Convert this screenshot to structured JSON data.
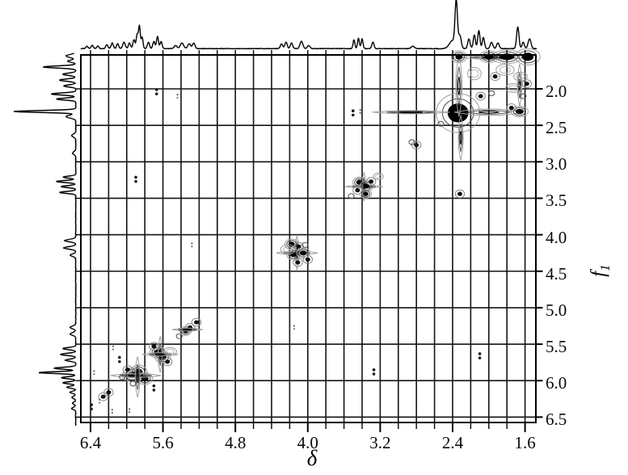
{
  "figure": {
    "background": "#ffffff",
    "ink": "#000000",
    "grid_color": "#141414",
    "contour_grays": [
      "#000000",
      "#4a4a4a",
      "#8a8a8a",
      "#9f9f9f"
    ]
  },
  "chart_data": {
    "type": "heatmap",
    "subtype": "2D NMR COSY contour spectrum with 1D projections",
    "title": "",
    "xlabel": "δ",
    "ylabel": "f",
    "ylabel_sub": "1",
    "x_axis": {
      "unit": "ppm",
      "reversed": true,
      "range": [
        6.51,
        1.48
      ],
      "tick_labels": [
        "6.4",
        "5.6",
        "4.8",
        "4.0",
        "3.2",
        "2.4",
        "1.6"
      ],
      "minor_tick_step": 0.2,
      "grid_step": 0.2
    },
    "y_axis": {
      "unit": "ppm",
      "side": "right",
      "range": [
        1.54,
        6.59
      ],
      "tick_labels": [
        "2.0",
        "2.5",
        "3.0",
        "3.5",
        "4.0",
        "4.5",
        "5.0",
        "5.5",
        "6.0",
        "6.5"
      ],
      "grid_step": 0.5
    },
    "grid": {
      "vertical_from": 6.4,
      "vertical_count": 25,
      "horizontal_from": 2.0,
      "horizontal_count": 10
    },
    "peaks_2d": [
      {
        "d": 2.34,
        "f": 2.33,
        "kind": "strong",
        "w": 0.23,
        "h": 0.26
      },
      {
        "d": 2.86,
        "f": 2.32,
        "kind": "hstreak",
        "w": 0.86,
        "h": 0.045
      },
      {
        "d": 2.0,
        "f": 2.32,
        "kind": "hstreak",
        "w": 0.76,
        "h": 0.09
      },
      {
        "d": 2.33,
        "f": 1.96,
        "kind": "vstreak",
        "w": 0.07,
        "h": 0.84
      },
      {
        "d": 2.31,
        "f": 2.67,
        "kind": "vstreak",
        "w": 0.055,
        "h": 0.62
      },
      {
        "d": 1.66,
        "f": 2.31,
        "kind": "strong",
        "w": 0.09,
        "h": 0.07
      },
      {
        "d": 1.75,
        "f": 2.26,
        "kind": "medium"
      },
      {
        "d": 2.53,
        "f": 2.48,
        "kind": "ring"
      },
      {
        "d": 2.8,
        "f": 2.77,
        "kind": "medium"
      },
      {
        "d": 2.85,
        "f": 2.73,
        "kind": "ring"
      },
      {
        "d": 3.5,
        "f": 2.33,
        "kind": "dots"
      },
      {
        "d": 3.42,
        "f": 2.31,
        "kind": "speck"
      },
      {
        "d": 2.32,
        "f": 3.44,
        "kind": "medium"
      },
      {
        "d": 1.95,
        "f": 1.57,
        "kind": "hstreak",
        "w": 0.8,
        "h": 0.05
      },
      {
        "d": 1.8,
        "f": 1.56,
        "kind": "strong",
        "w": 0.16,
        "h": 0.09
      },
      {
        "d": 1.57,
        "f": 1.56,
        "kind": "strong",
        "w": 0.13,
        "h": 0.11
      },
      {
        "d": 2.0,
        "f": 1.56,
        "kind": "strong",
        "w": 0.1,
        "h": 0.08
      },
      {
        "d": 2.33,
        "f": 1.56,
        "kind": "strong",
        "w": 0.08,
        "h": 0.08
      },
      {
        "d": 1.66,
        "f": 1.95,
        "kind": "vstreak",
        "w": 0.05,
        "h": 0.58
      },
      {
        "d": 1.93,
        "f": 1.83,
        "kind": "medium"
      },
      {
        "d": 2.09,
        "f": 2.1,
        "kind": "medium"
      },
      {
        "d": 1.97,
        "f": 2.06,
        "kind": "ring"
      },
      {
        "d": 1.82,
        "f": 1.74,
        "kind": "bigring",
        "w": 0.2,
        "h": 0.15
      },
      {
        "d": 1.65,
        "f": 1.83,
        "kind": "bigring",
        "w": 0.15,
        "h": 0.12
      },
      {
        "d": 1.73,
        "f": 1.99,
        "kind": "bigring",
        "w": 0.17,
        "h": 0.12
      },
      {
        "d": 2.16,
        "f": 1.79,
        "kind": "bigring",
        "w": 0.15,
        "h": 0.17
      },
      {
        "d": 1.58,
        "f": 1.93,
        "kind": "medium"
      },
      {
        "d": 1.62,
        "f": 2.1,
        "kind": "ring"
      },
      {
        "d": 5.67,
        "f": 2.04,
        "kind": "dots"
      },
      {
        "d": 5.44,
        "f": 2.1,
        "kind": "speck"
      },
      {
        "d": 2.1,
        "f": 5.66,
        "kind": "dots"
      },
      {
        "d": 5.9,
        "f": 3.24,
        "kind": "dots"
      },
      {
        "d": 3.27,
        "f": 5.88,
        "kind": "dots"
      },
      {
        "d": 5.28,
        "f": 4.14,
        "kind": "speck"
      },
      {
        "d": 4.15,
        "f": 5.27,
        "kind": "speck"
      },
      {
        "d": 3.38,
        "f": 3.34,
        "kind": "hstreak",
        "w": 0.42,
        "h": 0.04
      },
      {
        "d": 3.38,
        "f": 3.34,
        "kind": "vstreak",
        "w": 0.04,
        "h": 0.4
      },
      {
        "d": 3.43,
        "f": 3.28,
        "kind": "strong",
        "w": 0.07,
        "h": 0.07
      },
      {
        "d": 3.35,
        "f": 3.33,
        "kind": "strong",
        "w": 0.07,
        "h": 0.07
      },
      {
        "d": 3.45,
        "f": 3.39,
        "kind": "medium"
      },
      {
        "d": 3.36,
        "f": 3.44,
        "kind": "strong",
        "w": 0.06,
        "h": 0.06
      },
      {
        "d": 3.3,
        "f": 3.27,
        "kind": "medium"
      },
      {
        "d": 3.52,
        "f": 3.47,
        "kind": "ring"
      },
      {
        "d": 3.22,
        "f": 3.2,
        "kind": "bigring",
        "w": 0.11,
        "h": 0.09
      },
      {
        "d": 4.12,
        "f": 4.25,
        "kind": "hstreak",
        "w": 0.46,
        "h": 0.05
      },
      {
        "d": 4.12,
        "f": 4.25,
        "kind": "vstreak",
        "w": 0.05,
        "h": 0.46
      },
      {
        "d": 4.18,
        "f": 4.13,
        "kind": "strong",
        "w": 0.07,
        "h": 0.07
      },
      {
        "d": 4.1,
        "f": 4.16,
        "kind": "medium"
      },
      {
        "d": 4.16,
        "f": 4.27,
        "kind": "strong",
        "w": 0.07,
        "h": 0.07
      },
      {
        "d": 4.05,
        "f": 4.25,
        "kind": "strong",
        "w": 0.07,
        "h": 0.07
      },
      {
        "d": 4.11,
        "f": 4.38,
        "kind": "medium"
      },
      {
        "d": 4.0,
        "f": 4.34,
        "kind": "medium"
      },
      {
        "d": 4.22,
        "f": 4.2,
        "kind": "bigring",
        "w": 0.16,
        "h": 0.13
      },
      {
        "d": 4.03,
        "f": 4.14,
        "kind": "ring"
      },
      {
        "d": 5.42,
        "f": 5.39,
        "kind": "ring"
      },
      {
        "d": 5.35,
        "f": 5.32,
        "kind": "strong",
        "w": 0.06,
        "h": 0.06
      },
      {
        "d": 5.3,
        "f": 5.27,
        "kind": "medium"
      },
      {
        "d": 5.23,
        "f": 5.2,
        "kind": "medium"
      },
      {
        "d": 5.33,
        "f": 5.3,
        "kind": "hstreak",
        "w": 0.34,
        "h": 0.04
      },
      {
        "d": 5.66,
        "f": 5.61,
        "kind": "strong",
        "w": 0.08,
        "h": 0.08
      },
      {
        "d": 5.6,
        "f": 5.68,
        "kind": "strong",
        "w": 0.08,
        "h": 0.08
      },
      {
        "d": 5.7,
        "f": 5.53,
        "kind": "medium"
      },
      {
        "d": 5.55,
        "f": 5.74,
        "kind": "medium"
      },
      {
        "d": 5.63,
        "f": 5.64,
        "kind": "vstreak",
        "w": 0.05,
        "h": 0.5
      },
      {
        "d": 5.63,
        "f": 5.64,
        "kind": "hstreak",
        "w": 0.4,
        "h": 0.045
      },
      {
        "d": 5.52,
        "f": 5.6,
        "kind": "bigring",
        "w": 0.14,
        "h": 0.11
      },
      {
        "d": 5.94,
        "f": 5.92,
        "kind": "strong",
        "w": 0.1,
        "h": 0.09
      },
      {
        "d": 5.87,
        "f": 5.88,
        "kind": "strong",
        "w": 0.09,
        "h": 0.09
      },
      {
        "d": 5.8,
        "f": 5.97,
        "kind": "strong",
        "w": 0.08,
        "h": 0.08
      },
      {
        "d": 5.99,
        "f": 5.85,
        "kind": "medium"
      },
      {
        "d": 5.9,
        "f": 5.93,
        "kind": "hstreak",
        "w": 0.56,
        "h": 0.055
      },
      {
        "d": 5.88,
        "f": 5.95,
        "kind": "vstreak",
        "w": 0.055,
        "h": 0.56
      },
      {
        "d": 6.05,
        "f": 5.95,
        "kind": "ring"
      },
      {
        "d": 5.93,
        "f": 6.04,
        "kind": "ring"
      },
      {
        "d": 6.08,
        "f": 5.71,
        "kind": "dots"
      },
      {
        "d": 5.7,
        "f": 6.1,
        "kind": "dots"
      },
      {
        "d": 6.15,
        "f": 5.55,
        "kind": "speck"
      },
      {
        "d": 6.36,
        "f": 5.89,
        "kind": "speck"
      },
      {
        "d": 6.2,
        "f": 6.16,
        "kind": "medium"
      },
      {
        "d": 6.26,
        "f": 6.22,
        "kind": "medium"
      },
      {
        "d": 6.3,
        "f": 6.28,
        "kind": "speck"
      },
      {
        "d": 6.39,
        "f": 6.36,
        "kind": "dots"
      },
      {
        "d": 6.16,
        "f": 6.42,
        "kind": "speck"
      },
      {
        "d": 5.97,
        "f": 6.41,
        "kind": "speck"
      }
    ],
    "top_trace_peaks": [
      [
        6.44,
        3,
        0.012
      ],
      [
        6.38,
        4,
        0.012
      ],
      [
        6.32,
        3,
        0.012
      ],
      [
        6.22,
        5,
        0.012
      ],
      [
        6.16,
        7,
        0.012
      ],
      [
        6.1,
        6,
        0.012
      ],
      [
        6.03,
        8,
        0.014
      ],
      [
        5.97,
        7,
        0.012
      ],
      [
        5.92,
        11,
        0.012
      ],
      [
        5.885,
        17,
        0.01
      ],
      [
        5.86,
        28,
        0.01
      ],
      [
        5.83,
        14,
        0.01
      ],
      [
        5.76,
        8,
        0.012
      ],
      [
        5.7,
        9,
        0.012
      ],
      [
        5.66,
        15,
        0.011
      ],
      [
        5.62,
        9,
        0.011
      ],
      [
        5.46,
        4,
        0.015
      ],
      [
        5.39,
        7,
        0.018
      ],
      [
        5.31,
        6,
        0.016
      ],
      [
        5.26,
        7,
        0.014
      ],
      [
        4.29,
        6,
        0.013
      ],
      [
        4.24,
        8,
        0.013
      ],
      [
        4.18,
        7,
        0.013
      ],
      [
        4.07,
        9,
        0.016
      ],
      [
        3.99,
        4,
        0.014
      ],
      [
        3.49,
        11,
        0.01
      ],
      [
        3.44,
        13,
        0.01
      ],
      [
        3.4,
        12,
        0.01
      ],
      [
        3.28,
        8,
        0.012
      ],
      [
        2.84,
        3,
        0.018
      ],
      [
        2.4,
        10,
        0.035
      ],
      [
        2.36,
        56,
        0.013
      ],
      [
        2.32,
        16,
        0.015
      ],
      [
        2.22,
        12,
        0.013
      ],
      [
        2.16,
        17,
        0.012
      ],
      [
        2.11,
        22,
        0.012
      ],
      [
        2.06,
        14,
        0.012
      ],
      [
        1.97,
        8,
        0.014
      ],
      [
        1.9,
        7,
        0.014
      ],
      [
        1.68,
        27,
        0.013
      ],
      [
        1.62,
        8,
        0.013
      ],
      [
        1.55,
        12,
        0.016
      ]
    ],
    "left_trace_peaks": [
      [
        1.55,
        12,
        0.02
      ],
      [
        1.62,
        10,
        0.015
      ],
      [
        1.7,
        40,
        0.014
      ],
      [
        1.8,
        16,
        0.015
      ],
      [
        1.88,
        20,
        0.015
      ],
      [
        1.96,
        15,
        0.014
      ],
      [
        2.07,
        30,
        0.014
      ],
      [
        2.14,
        24,
        0.013
      ],
      [
        2.31,
        76,
        0.013
      ],
      [
        2.38,
        12,
        0.02
      ],
      [
        2.64,
        5,
        0.02
      ],
      [
        2.88,
        4,
        0.02
      ],
      [
        3.21,
        16,
        0.013
      ],
      [
        3.27,
        24,
        0.013
      ],
      [
        3.34,
        18,
        0.013
      ],
      [
        3.42,
        20,
        0.013
      ],
      [
        4.08,
        14,
        0.016
      ],
      [
        4.18,
        15,
        0.016
      ],
      [
        4.28,
        7,
        0.016
      ],
      [
        5.27,
        7,
        0.018
      ],
      [
        5.36,
        7,
        0.018
      ],
      [
        5.56,
        16,
        0.014
      ],
      [
        5.64,
        19,
        0.014
      ],
      [
        5.72,
        13,
        0.014
      ],
      [
        5.83,
        27,
        0.013
      ],
      [
        5.89,
        46,
        0.012
      ],
      [
        5.96,
        18,
        0.013
      ],
      [
        6.03,
        16,
        0.013
      ],
      [
        6.09,
        11,
        0.013
      ],
      [
        6.16,
        7,
        0.014
      ],
      [
        6.23,
        5,
        0.015
      ],
      [
        6.31,
        4,
        0.015
      ],
      [
        6.38,
        5,
        0.015
      ]
    ]
  }
}
